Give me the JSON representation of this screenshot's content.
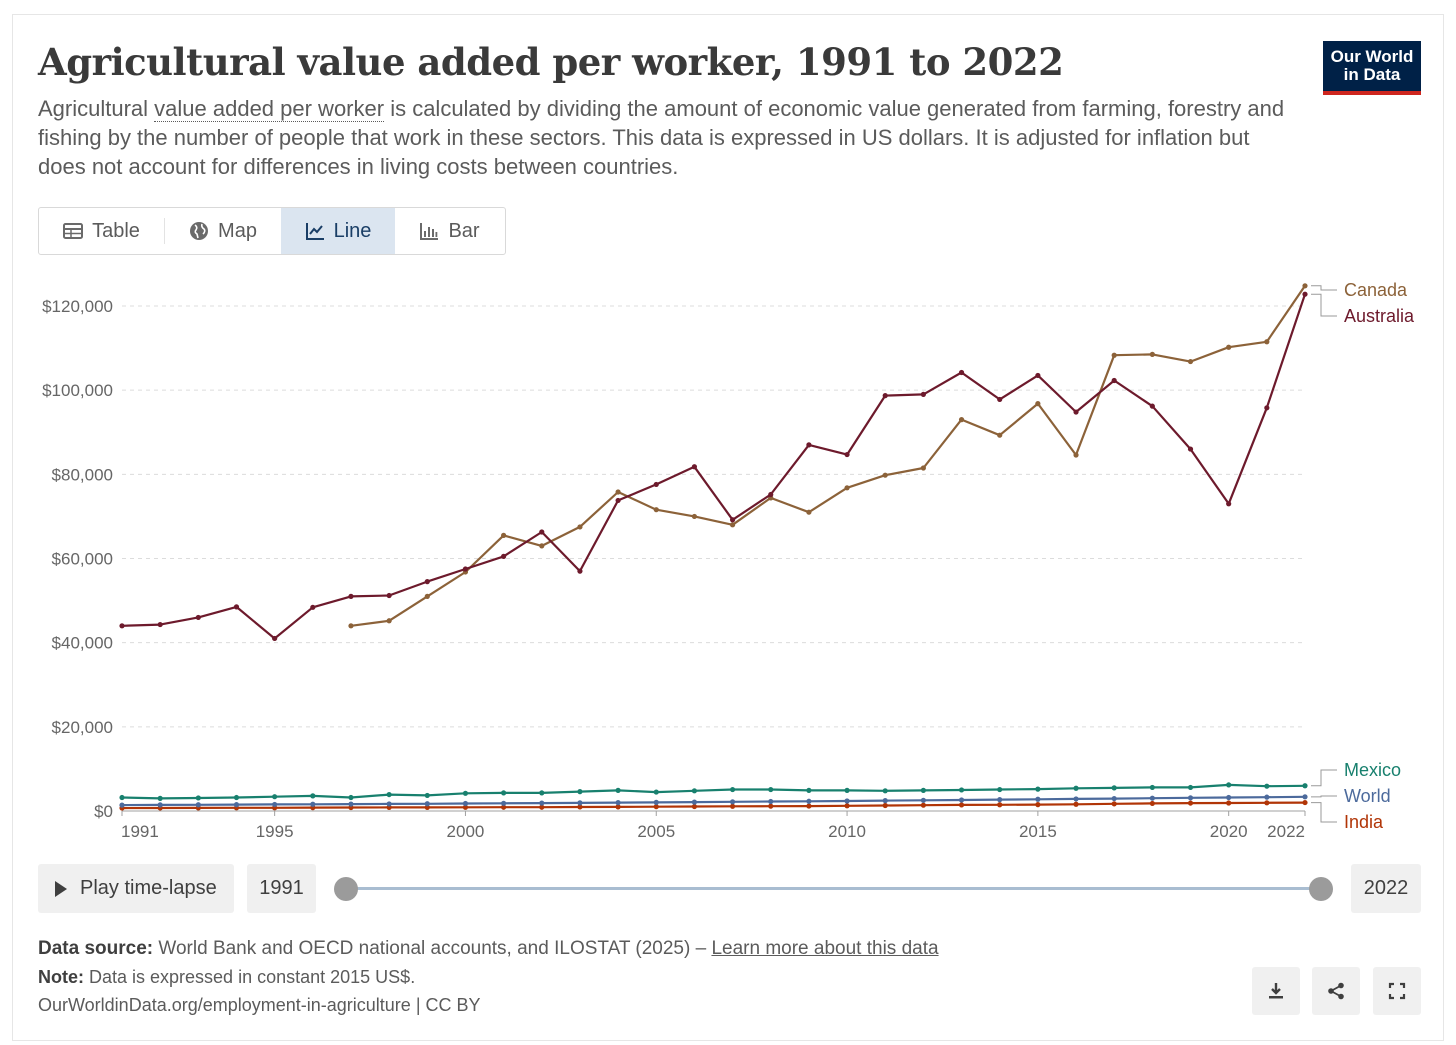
{
  "header": {
    "title": "Agricultural value added per worker, 1991 to 2022",
    "subtitle_before": "Agricultural ",
    "subtitle_link": "value added per worker",
    "subtitle_after": " is calculated by dividing the amount of economic value generated from farming, forestry and fishing by the number of people that work in these sectors. This data is expressed in US dollars. It is adjusted for inflation but does not account for differences in living costs between countries.",
    "logo_line1": "Our World",
    "logo_line2": "in Data"
  },
  "tabs": [
    {
      "label": "Table",
      "icon": "table-icon"
    },
    {
      "label": "Map",
      "icon": "globe-icon"
    },
    {
      "label": "Line",
      "icon": "line-chart-icon",
      "active": true
    },
    {
      "label": "Bar",
      "icon": "bar-chart-icon"
    }
  ],
  "controls": {
    "play_label": "Play time-lapse",
    "start_year": "1991",
    "end_year": "2022"
  },
  "footer": {
    "source_label": "Data source:",
    "source_text": " World Bank and OECD national accounts, and ILOSTAT (2025) – ",
    "source_link": "Learn more about this data",
    "note_label": "Note:",
    "note_text": " Data is expressed in constant 2015 US$.",
    "attribution": "OurWorldinData.org/employment-in-agriculture | CC BY"
  },
  "chart_data": {
    "type": "line",
    "title": "Agricultural value added per worker, 1991 to 2022",
    "xlabel": "",
    "ylabel": "",
    "xlim": [
      1991,
      2022
    ],
    "ylim": [
      0,
      120000
    ],
    "yticks": [
      0,
      20000,
      40000,
      60000,
      80000,
      100000,
      120000
    ],
    "ytick_labels": [
      "$0",
      "$20,000",
      "$40,000",
      "$60,000",
      "$80,000",
      "$100,000",
      "$120,000"
    ],
    "xticks": [
      1991,
      1995,
      2000,
      2005,
      2010,
      2015,
      2020,
      2022
    ],
    "xtick_labels": [
      "1991",
      "1995",
      "2000",
      "2005",
      "2010",
      "2015",
      "2020",
      "2022"
    ],
    "grid": "horizontal dashed",
    "series": [
      {
        "name": "Canada",
        "color": "#8c6239",
        "x": [
          1997,
          1998,
          1999,
          2000,
          2001,
          2002,
          2003,
          2004,
          2005,
          2006,
          2007,
          2008,
          2009,
          2010,
          2011,
          2012,
          2013,
          2014,
          2015,
          2016,
          2017,
          2018,
          2019,
          2020,
          2021,
          2022
        ],
        "values": [
          44000,
          45200,
          51000,
          56800,
          65500,
          63000,
          67500,
          75800,
          71600,
          70000,
          68000,
          74400,
          71000,
          76800,
          79800,
          81500,
          93000,
          89300,
          96800,
          84600,
          108300,
          108500,
          106800,
          110200,
          111500,
          124800
        ]
      },
      {
        "name": "Australia",
        "color": "#6d1a2c",
        "x": [
          1991,
          1992,
          1993,
          1994,
          1995,
          1996,
          1997,
          1998,
          1999,
          2000,
          2001,
          2002,
          2003,
          2004,
          2005,
          2006,
          2007,
          2008,
          2009,
          2010,
          2011,
          2012,
          2013,
          2014,
          2015,
          2016,
          2017,
          2018,
          2019,
          2020,
          2021,
          2022
        ],
        "values": [
          44000,
          44300,
          46000,
          48500,
          41000,
          48400,
          51000,
          51200,
          54500,
          57500,
          60500,
          66300,
          57000,
          73800,
          77600,
          81800,
          69200,
          75200,
          87000,
          84700,
          98700,
          99000,
          104200,
          97800,
          103500,
          94800,
          102300,
          96200,
          86000,
          73000,
          95800,
          122800
        ]
      },
      {
        "name": "Mexico",
        "color": "#18806e",
        "x": [
          1991,
          1992,
          1993,
          1994,
          1995,
          1996,
          1997,
          1998,
          1999,
          2000,
          2001,
          2002,
          2003,
          2004,
          2005,
          2006,
          2007,
          2008,
          2009,
          2010,
          2011,
          2012,
          2013,
          2014,
          2015,
          2016,
          2017,
          2018,
          2019,
          2020,
          2021,
          2022
        ],
        "values": [
          3200,
          3000,
          3100,
          3200,
          3400,
          3600,
          3200,
          3900,
          3700,
          4200,
          4300,
          4300,
          4600,
          4900,
          4500,
          4800,
          5100,
          5100,
          4900,
          4900,
          4800,
          4900,
          5000,
          5100,
          5200,
          5400,
          5500,
          5600,
          5600,
          6200,
          5900,
          6000
        ]
      },
      {
        "name": "World",
        "color": "#4c6a9c",
        "x": [
          1991,
          1992,
          1993,
          1994,
          1995,
          1996,
          1997,
          1998,
          1999,
          2000,
          2001,
          2002,
          2003,
          2004,
          2005,
          2006,
          2007,
          2008,
          2009,
          2010,
          2011,
          2012,
          2013,
          2014,
          2015,
          2016,
          2017,
          2018,
          2019,
          2020,
          2021,
          2022
        ],
        "values": [
          1400,
          1450,
          1480,
          1520,
          1560,
          1600,
          1640,
          1680,
          1720,
          1780,
          1830,
          1880,
          1930,
          1990,
          2050,
          2110,
          2180,
          2250,
          2310,
          2380,
          2460,
          2540,
          2620,
          2700,
          2790,
          2870,
          2950,
          3040,
          3130,
          3210,
          3290,
          3370
        ]
      },
      {
        "name": "India",
        "color": "#b13507",
        "x": [
          1991,
          1992,
          1993,
          1994,
          1995,
          1996,
          1997,
          1998,
          1999,
          2000,
          2001,
          2002,
          2003,
          2004,
          2005,
          2006,
          2007,
          2008,
          2009,
          2010,
          2011,
          2012,
          2013,
          2014,
          2015,
          2016,
          2017,
          2018,
          2019,
          2020,
          2021,
          2022
        ],
        "values": [
          700,
          720,
          740,
          760,
          770,
          800,
          820,
          850,
          860,
          880,
          900,
          900,
          960,
          980,
          1020,
          1060,
          1120,
          1150,
          1170,
          1240,
          1310,
          1380,
          1440,
          1480,
          1510,
          1600,
          1700,
          1800,
          1880,
          1900,
          1950,
          2000
        ]
      }
    ]
  }
}
